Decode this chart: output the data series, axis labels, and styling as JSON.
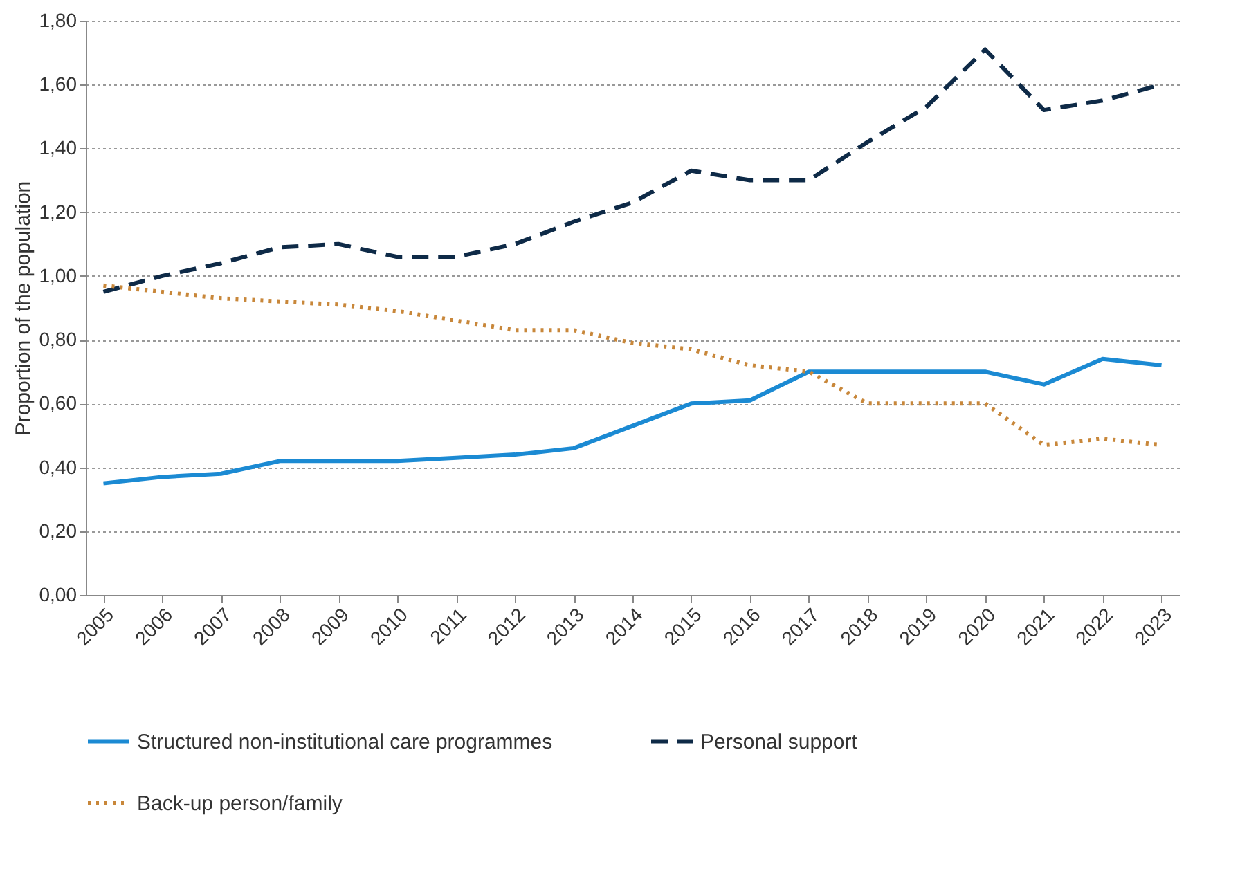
{
  "chart_data": {
    "type": "line",
    "ylabel": "Proportion of the population",
    "categories": [
      "2005",
      "2006",
      "2007",
      "2008",
      "2009",
      "2010",
      "2011",
      "2012",
      "2013",
      "2014",
      "2015",
      "2016",
      "2017",
      "2018",
      "2019",
      "2020",
      "2021",
      "2022",
      "2023"
    ],
    "series": [
      {
        "name": "Structured  non-institutional care programmes",
        "color": "#1b8ad3",
        "line_style": "solid",
        "values": [
          0.35,
          0.37,
          0.38,
          0.42,
          0.42,
          0.42,
          0.43,
          0.44,
          0.46,
          0.53,
          0.6,
          0.61,
          0.7,
          0.7,
          0.7,
          0.7,
          0.66,
          0.74,
          0.72
        ]
      },
      {
        "name": "Personal support",
        "color": "#0e2a47",
        "line_style": "dashed",
        "values": [
          0.95,
          1.0,
          1.04,
          1.09,
          1.1,
          1.06,
          1.06,
          1.1,
          1.17,
          1.23,
          1.33,
          1.3,
          1.3,
          1.42,
          1.53,
          1.71,
          1.52,
          1.55,
          1.6
        ]
      },
      {
        "name": "Back-up person/family",
        "color": "#c8873a",
        "line_style": "dotted",
        "values": [
          0.97,
          0.95,
          0.93,
          0.92,
          0.91,
          0.89,
          0.86,
          0.83,
          0.83,
          0.79,
          0.77,
          0.72,
          0.7,
          0.6,
          0.6,
          0.6,
          0.47,
          0.49,
          0.47
        ]
      }
    ],
    "ylim": [
      0,
      1.8
    ],
    "yticks": [
      {
        "value": 0,
        "label": "0,00"
      },
      {
        "value": 0.2,
        "label": "0,20"
      },
      {
        "value": 0.4,
        "label": "0,40"
      },
      {
        "value": 0.6,
        "label": "0,60"
      },
      {
        "value": 0.8,
        "label": "0,80"
      },
      {
        "value": 1.0,
        "label": "1,00"
      },
      {
        "value": 1.2,
        "label": "1,20"
      },
      {
        "value": 1.4,
        "label": "1,40"
      },
      {
        "value": 1.6,
        "label": "1,60"
      },
      {
        "value": 1.8,
        "label": "1,80"
      }
    ],
    "grid": "y",
    "legend": "bottom"
  }
}
